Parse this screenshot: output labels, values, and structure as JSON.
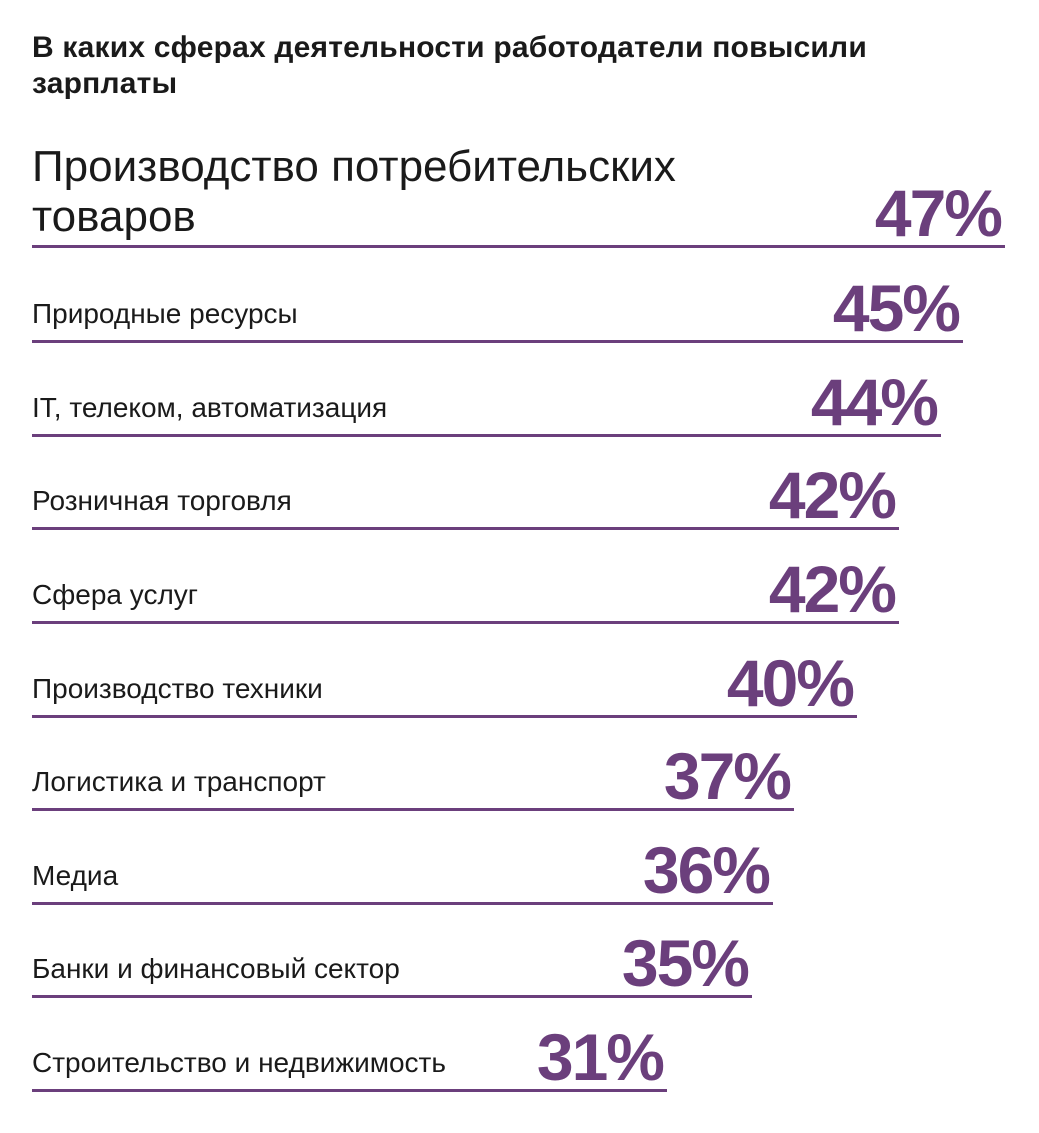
{
  "chart_data": {
    "type": "bar",
    "title": "В каких сферах деятельности работодатели повысили зарплаты",
    "value_suffix": "%",
    "categories": [
      "Производство потребительских товаров",
      "Природные ресурсы",
      "IT, телеком, автоматизация",
      "Розничная торговля",
      "Сфера услуг",
      "Производство техники",
      "Логистика и транспорт",
      "Медиа",
      "Банки и финансовый сектор",
      "Строительство и недвижимость"
    ],
    "values": [
      47,
      45,
      44,
      42,
      42,
      40,
      37,
      36,
      35,
      31
    ],
    "value_labels": [
      "47%",
      "45%",
      "44%",
      "42%",
      "42%",
      "40%",
      "37%",
      "36%",
      "35%",
      "31%"
    ],
    "bar_color": "#6b3f7c",
    "orientation": "horizontal"
  }
}
